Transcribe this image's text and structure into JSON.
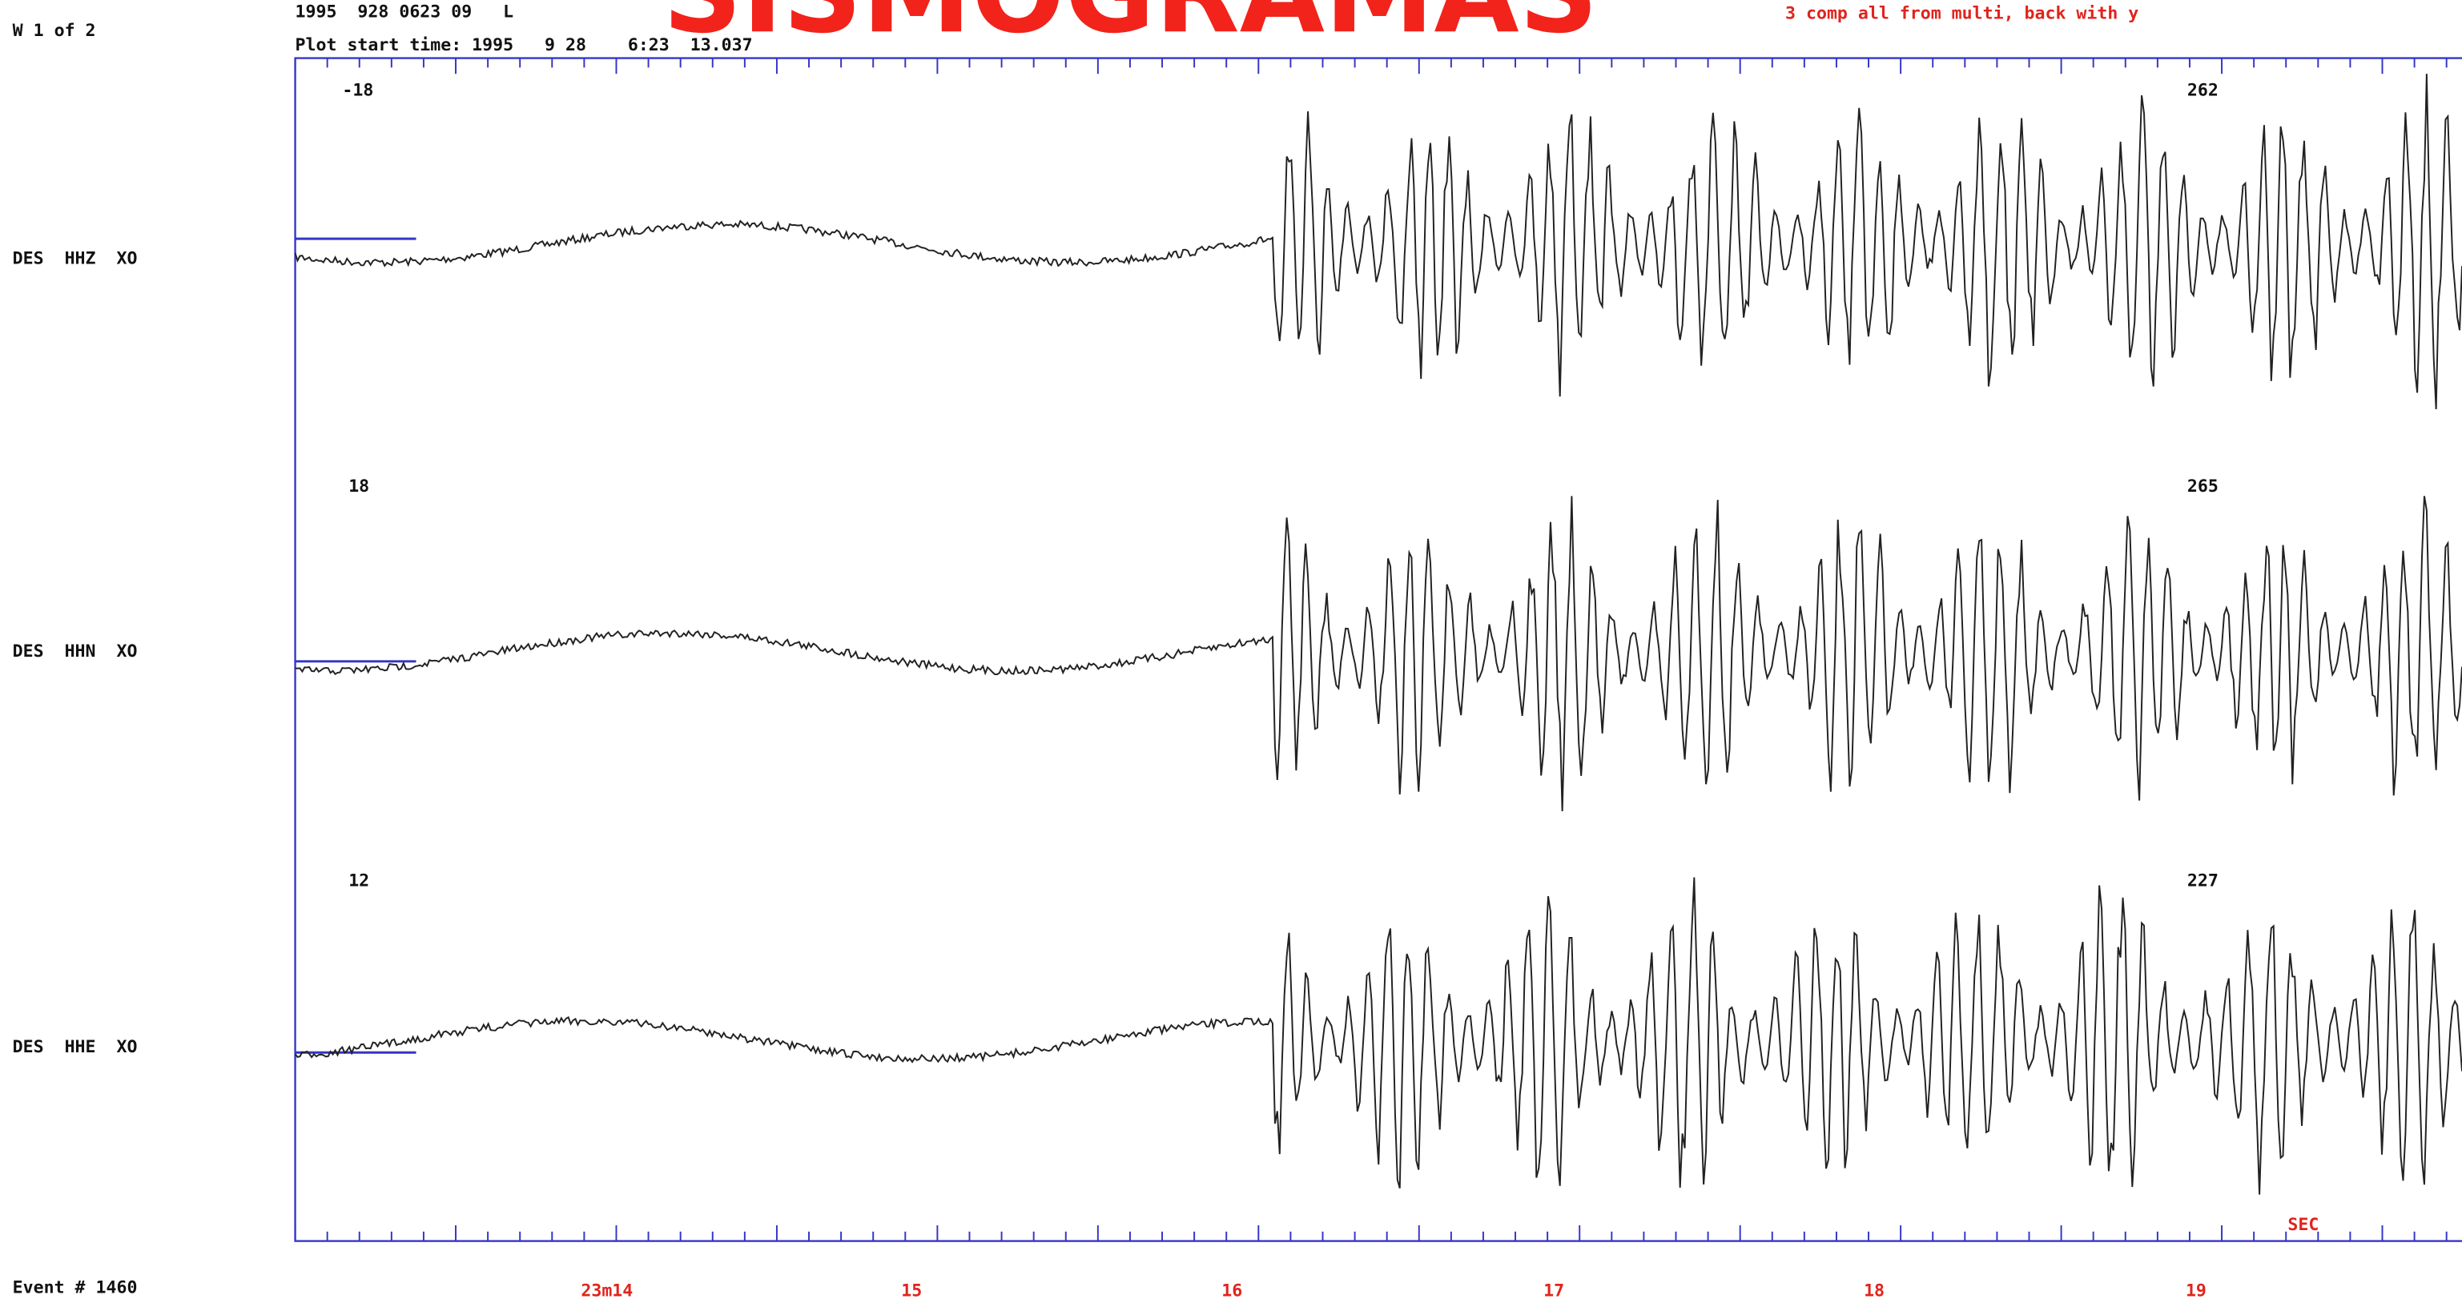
{
  "title": "SISMOGRAMAS",
  "header": {
    "page": "W 1 of 2",
    "event_line": "1995  928 0623 09   L",
    "start_time": "Plot start time: 1995   9 28    6:23  13.037",
    "note": "3 comp all from multi, back with y"
  },
  "traces": [
    {
      "label": "DES  HHZ  XO",
      "left_value": "-18",
      "right_value": "262"
    },
    {
      "label": "DES  HHN  XO",
      "left_value": "18",
      "right_value": "265"
    },
    {
      "label": "DES  HHE  XO",
      "left_value": "12",
      "right_value": "227"
    }
  ],
  "footer": {
    "event": "Event # 1460",
    "unit": "SEC",
    "time_labels": [
      "23m14",
      "15",
      "16",
      "17",
      "18",
      "19"
    ]
  }
}
